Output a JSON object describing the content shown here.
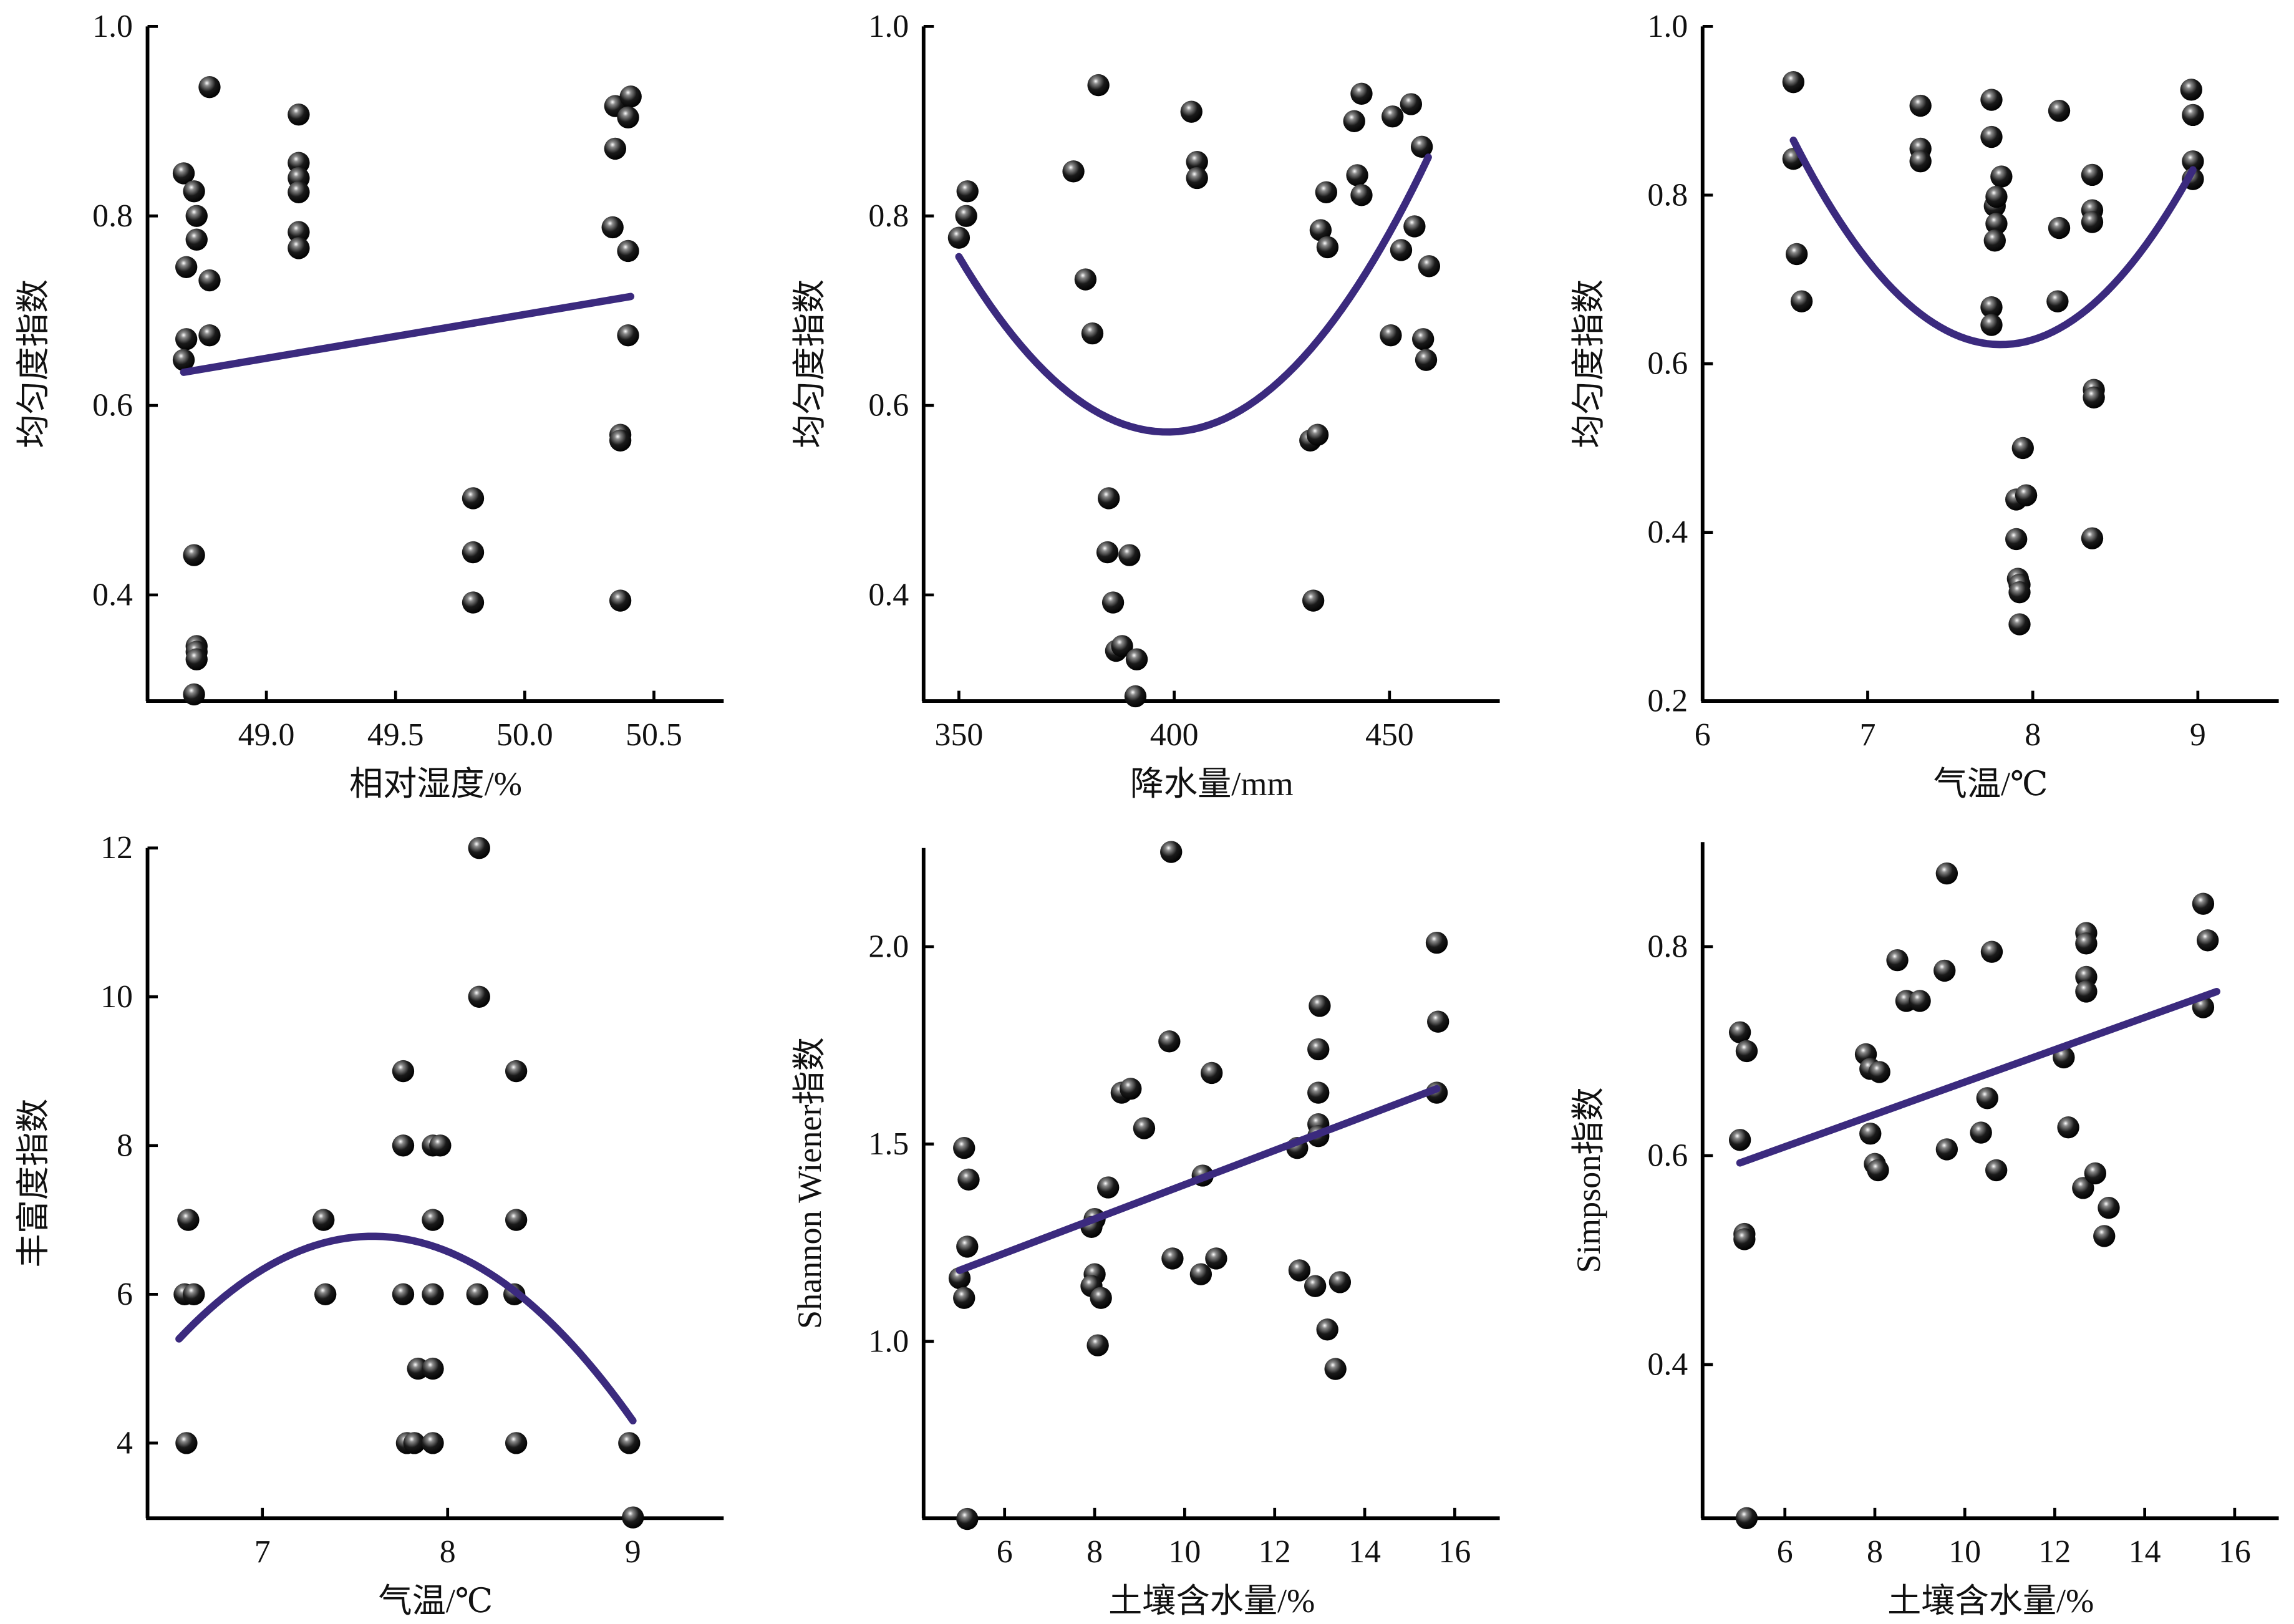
{
  "chart_data": [
    {
      "type": "scatter",
      "xlabel": "相对湿度/%",
      "ylabel": "均匀度指数",
      "xlim": [
        48.54,
        50.77
      ],
      "ylim": [
        0.288,
        1.0
      ],
      "xticks": [
        "49.0",
        "49.5",
        "50.0",
        "50.5"
      ],
      "yticks": [
        "0.4",
        "0.6",
        "0.8",
        "1.0"
      ],
      "grid": false,
      "points": [
        [
          48.68,
          0.845
        ],
        [
          48.72,
          0.826
        ],
        [
          48.73,
          0.8
        ],
        [
          48.73,
          0.775
        ],
        [
          48.69,
          0.746
        ],
        [
          48.78,
          0.732
        ],
        [
          48.69,
          0.67
        ],
        [
          48.78,
          0.674
        ],
        [
          48.68,
          0.648
        ],
        [
          48.72,
          0.442
        ],
        [
          48.73,
          0.346
        ],
        [
          48.73,
          0.34
        ],
        [
          48.73,
          0.332
        ],
        [
          48.72,
          0.295
        ],
        [
          48.78,
          0.936
        ],
        [
          49.125,
          0.907
        ],
        [
          49.125,
          0.856
        ],
        [
          49.125,
          0.84
        ],
        [
          49.125,
          0.825
        ],
        [
          49.125,
          0.783
        ],
        [
          49.125,
          0.766
        ],
        [
          49.8,
          0.502
        ],
        [
          49.8,
          0.445
        ],
        [
          49.8,
          0.392
        ],
        [
          50.35,
          0.916
        ],
        [
          50.41,
          0.926
        ],
        [
          50.4,
          0.904
        ],
        [
          50.35,
          0.871
        ],
        [
          50.34,
          0.788
        ],
        [
          50.4,
          0.763
        ],
        [
          50.4,
          0.674
        ],
        [
          50.37,
          0.569
        ],
        [
          50.37,
          0.563
        ],
        [
          50.37,
          0.394
        ]
      ],
      "fit": {
        "type": "linear",
        "points": [
          [
            48.68,
            0.635
          ],
          [
            50.41,
            0.715
          ]
        ]
      },
      "fit_color": "#3b2a7e"
    },
    {
      "type": "scatter",
      "xlabel": "降水量/mm",
      "ylabel": "均匀度指数",
      "xlim": [
        341.8,
        475.6
      ],
      "ylim": [
        0.288,
        1.0
      ],
      "xticks": [
        "350",
        "400",
        "450"
      ],
      "yticks": [
        "0.4",
        "0.6",
        "0.8",
        "1.0"
      ],
      "grid": false,
      "points": [
        [
          350,
          0.777
        ],
        [
          351.7,
          0.8
        ],
        [
          352,
          0.826
        ],
        [
          376.6,
          0.847
        ],
        [
          379.4,
          0.733
        ],
        [
          381,
          0.676
        ],
        [
          382.4,
          0.938
        ],
        [
          384.8,
          0.502
        ],
        [
          384.5,
          0.445
        ],
        [
          385.8,
          0.392
        ],
        [
          386.5,
          0.341
        ],
        [
          387.9,
          0.346
        ],
        [
          389.6,
          0.442
        ],
        [
          391.3,
          0.332
        ],
        [
          391,
          0.293
        ],
        [
          404,
          0.91
        ],
        [
          405.3,
          0.857
        ],
        [
          405.3,
          0.84
        ],
        [
          431.6,
          0.563
        ],
        [
          433.3,
          0.569
        ],
        [
          432.3,
          0.394
        ],
        [
          434,
          0.785
        ],
        [
          435.3,
          0.825
        ],
        [
          435.6,
          0.767
        ],
        [
          441.8,
          0.9
        ],
        [
          443.5,
          0.929
        ],
        [
          442.5,
          0.843
        ],
        [
          443.5,
          0.822
        ],
        [
          450.3,
          0.674
        ],
        [
          450.7,
          0.905
        ],
        [
          452.7,
          0.764
        ],
        [
          455,
          0.918
        ],
        [
          455.8,
          0.789
        ],
        [
          457.5,
          0.873
        ],
        [
          457.8,
          0.67
        ],
        [
          458.5,
          0.648
        ],
        [
          459.2,
          0.747
        ]
      ],
      "fit": {
        "type": "quadratic",
        "points": [
          [
            350,
            0.757
          ],
          [
            399,
            0.572
          ],
          [
            459,
            0.862
          ]
        ]
      },
      "fit_color": "#3b2a7e"
    },
    {
      "type": "scatter",
      "xlabel": "气温/℃",
      "ylabel": "均匀度指数",
      "xlim": [
        6,
        9.49
      ],
      "ylim": [
        0.2,
        1.0
      ],
      "xticks": [
        "6",
        "7",
        "8",
        "9"
      ],
      "yticks": [
        "0.2",
        "0.4",
        "0.6",
        "0.8",
        "1.0"
      ],
      "grid": false,
      "points": [
        [
          6.55,
          0.934
        ],
        [
          6.55,
          0.843
        ],
        [
          6.57,
          0.73
        ],
        [
          6.6,
          0.674
        ],
        [
          7.32,
          0.906
        ],
        [
          7.32,
          0.855
        ],
        [
          7.32,
          0.84
        ],
        [
          7.75,
          0.913
        ],
        [
          7.75,
          0.869
        ],
        [
          7.77,
          0.787
        ],
        [
          7.78,
          0.766
        ],
        [
          7.81,
          0.822
        ],
        [
          7.78,
          0.798
        ],
        [
          7.77,
          0.746
        ],
        [
          7.75,
          0.667
        ],
        [
          7.75,
          0.646
        ],
        [
          7.94,
          0.5
        ],
        [
          7.9,
          0.439
        ],
        [
          7.96,
          0.444
        ],
        [
          7.9,
          0.392
        ],
        [
          7.91,
          0.345
        ],
        [
          7.92,
          0.338
        ],
        [
          7.92,
          0.329
        ],
        [
          7.92,
          0.291
        ],
        [
          8.16,
          0.9
        ],
        [
          8.16,
          0.761
        ],
        [
          8.15,
          0.674
        ],
        [
          8.36,
          0.824
        ],
        [
          8.36,
          0.782
        ],
        [
          8.36,
          0.768
        ],
        [
          8.37,
          0.569
        ],
        [
          8.37,
          0.56
        ],
        [
          8.36,
          0.393
        ],
        [
          8.96,
          0.925
        ],
        [
          8.97,
          0.895
        ],
        [
          8.97,
          0.84
        ],
        [
          8.97,
          0.819
        ]
      ],
      "fit": {
        "type": "quadratic",
        "points": [
          [
            6.55,
            0.865
          ],
          [
            7.85,
            0.623
          ],
          [
            8.97,
            0.83
          ]
        ]
      },
      "fit_color": "#3b2a7e"
    },
    {
      "type": "scatter",
      "xlabel": "气温/℃",
      "ylabel": "丰富度指数",
      "xlim": [
        6.38,
        9.49
      ],
      "ylim": [
        2.99,
        12
      ],
      "xticks": [
        "7",
        "8",
        "9"
      ],
      "yticks": [
        "4",
        "6",
        "8",
        "10",
        "12"
      ],
      "grid": false,
      "points": [
        [
          6.6,
          7
        ],
        [
          6.58,
          6
        ],
        [
          6.63,
          6
        ],
        [
          6.59,
          4
        ],
        [
          7.33,
          7
        ],
        [
          7.34,
          6
        ],
        [
          7.76,
          9
        ],
        [
          7.76,
          8
        ],
        [
          7.76,
          6
        ],
        [
          7.78,
          4
        ],
        [
          7.82,
          4
        ],
        [
          7.84,
          5
        ],
        [
          7.92,
          5
        ],
        [
          7.92,
          6
        ],
        [
          7.92,
          4
        ],
        [
          7.92,
          8
        ],
        [
          7.96,
          8
        ],
        [
          7.92,
          7
        ],
        [
          8.17,
          12
        ],
        [
          8.17,
          10
        ],
        [
          8.16,
          6
        ],
        [
          8.37,
          9
        ],
        [
          8.37,
          7
        ],
        [
          8.36,
          6
        ],
        [
          8.37,
          4
        ],
        [
          8.98,
          4
        ],
        [
          9.0,
          3
        ]
      ],
      "fit": {
        "type": "quadratic",
        "points": [
          [
            6.55,
            5.4
          ],
          [
            7.6,
            6.78
          ],
          [
            9.0,
            4.3
          ]
        ]
      },
      "fit_color": "#3b2a7e"
    },
    {
      "type": "scatter",
      "xlabel": "土壤含水量/%",
      "ylabel": "Shannon Wiener指数",
      "xlim": [
        4.2,
        17.0
      ],
      "ylim": [
        0.552,
        2.25
      ],
      "xticks": [
        "6",
        "8",
        "10",
        "12",
        "14",
        "16"
      ],
      "yticks": [
        "1.0",
        "1.5",
        "2.0"
      ],
      "grid": false,
      "points": [
        [
          5.1,
          1.49
        ],
        [
          5.2,
          1.41
        ],
        [
          5.17,
          1.24
        ],
        [
          5.0,
          1.16
        ],
        [
          5.1,
          1.11
        ],
        [
          5.17,
          0.55
        ],
        [
          8.0,
          1.31
        ],
        [
          7.93,
          1.29
        ],
        [
          8.0,
          1.17
        ],
        [
          7.93,
          1.14
        ],
        [
          8.14,
          1.11
        ],
        [
          8.07,
          0.99
        ],
        [
          8.3,
          1.39
        ],
        [
          8.6,
          1.63
        ],
        [
          8.8,
          1.64
        ],
        [
          9.1,
          1.54
        ],
        [
          9.66,
          1.76
        ],
        [
          9.7,
          2.24
        ],
        [
          9.73,
          1.21
        ],
        [
          10.4,
          1.42
        ],
        [
          10.6,
          1.68
        ],
        [
          10.7,
          1.21
        ],
        [
          10.36,
          1.17
        ],
        [
          12.5,
          1.49
        ],
        [
          12.55,
          1.18
        ],
        [
          13.0,
          1.85
        ],
        [
          12.97,
          1.74
        ],
        [
          12.97,
          1.63
        ],
        [
          12.97,
          1.55
        ],
        [
          12.97,
          1.52
        ],
        [
          12.9,
          1.14
        ],
        [
          13.17,
          1.03
        ],
        [
          13.35,
          0.93
        ],
        [
          13.45,
          1.15
        ],
        [
          15.6,
          2.01
        ],
        [
          15.63,
          1.81
        ],
        [
          15.6,
          1.63
        ]
      ],
      "fit": {
        "type": "linear",
        "points": [
          [
            5.0,
            1.18
          ],
          [
            15.6,
            1.64
          ]
        ]
      },
      "fit_color": "#3b2a7e"
    },
    {
      "type": "scatter",
      "xlabel": "土壤含水量/%",
      "ylabel": "Simpson指数",
      "xlim": [
        4.17,
        16.98
      ],
      "ylim": [
        0.253,
        0.9
      ],
      "xticks": [
        "6",
        "8",
        "10",
        "12",
        "14",
        "16"
      ],
      "yticks": [
        "0.4",
        "0.6",
        "0.8"
      ],
      "grid": false,
      "points": [
        [
          5.0,
          0.718
        ],
        [
          5.15,
          0.7
        ],
        [
          5.0,
          0.615
        ],
        [
          5.1,
          0.525
        ],
        [
          5.1,
          0.52
        ],
        [
          5.15,
          0.253
        ],
        [
          7.8,
          0.697
        ],
        [
          7.9,
          0.683
        ],
        [
          8.1,
          0.68
        ],
        [
          7.9,
          0.621
        ],
        [
          8.0,
          0.592
        ],
        [
          8.07,
          0.586
        ],
        [
          8.5,
          0.787
        ],
        [
          8.7,
          0.748
        ],
        [
          9.0,
          0.748
        ],
        [
          9.55,
          0.777
        ],
        [
          9.6,
          0.87
        ],
        [
          9.6,
          0.606
        ],
        [
          10.5,
          0.655
        ],
        [
          10.36,
          0.622
        ],
        [
          10.6,
          0.795
        ],
        [
          10.7,
          0.586
        ],
        [
          12.2,
          0.694
        ],
        [
          12.3,
          0.627
        ],
        [
          12.7,
          0.813
        ],
        [
          12.7,
          0.803
        ],
        [
          12.7,
          0.771
        ],
        [
          12.7,
          0.757
        ],
        [
          12.63,
          0.569
        ],
        [
          12.9,
          0.583
        ],
        [
          13.1,
          0.523
        ],
        [
          13.2,
          0.55
        ],
        [
          15.3,
          0.841
        ],
        [
          15.4,
          0.806
        ],
        [
          15.3,
          0.742
        ]
      ],
      "fit": {
        "type": "linear",
        "points": [
          [
            5.0,
            0.593
          ],
          [
            15.6,
            0.757
          ]
        ]
      },
      "fit_color": "#3b2a7e"
    }
  ]
}
